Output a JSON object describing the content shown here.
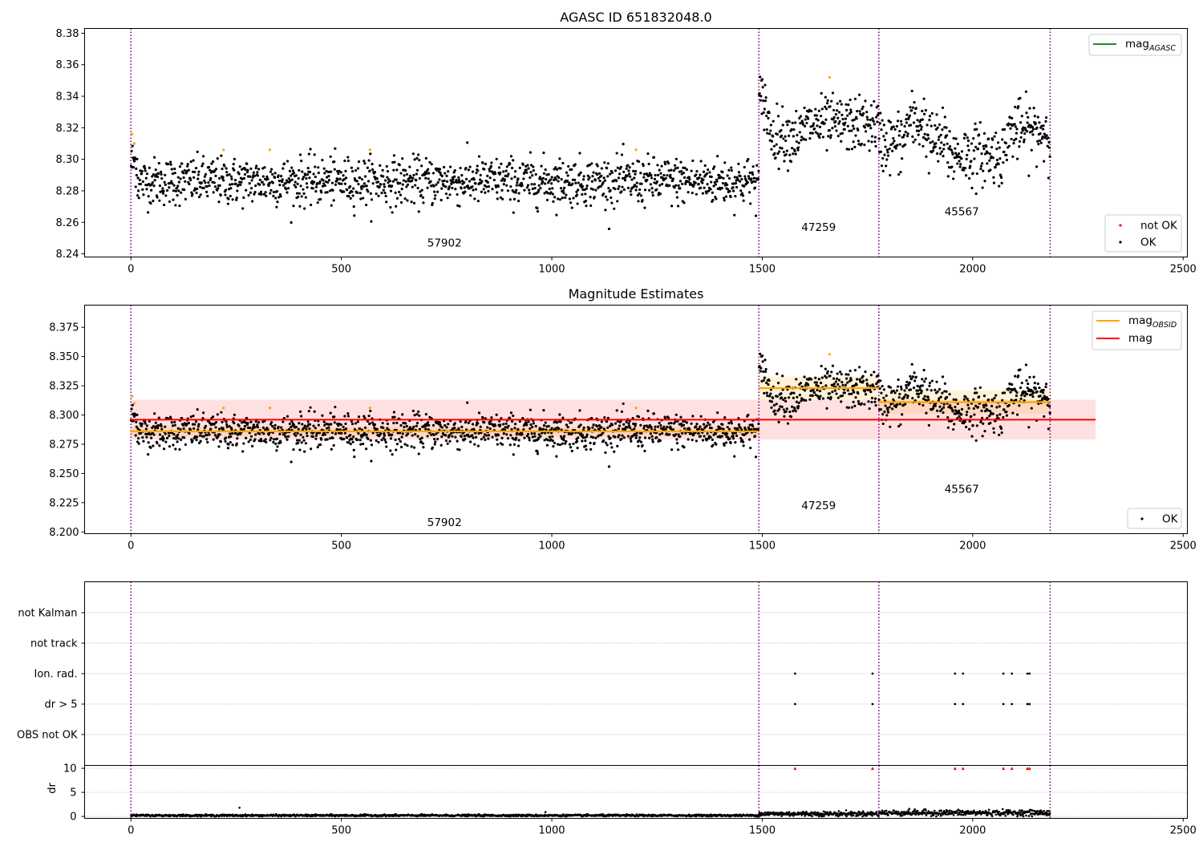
{
  "chart_data": [
    {
      "type": "scatter",
      "title": "AGASC ID 651832048.0",
      "xlim": [
        -110,
        2510
      ],
      "ylim": [
        8.238,
        8.383
      ],
      "xticks": [
        0,
        500,
        1000,
        1500,
        2000,
        2500
      ],
      "yticks": [
        8.24,
        8.26,
        8.28,
        8.3,
        8.32,
        8.34,
        8.36,
        8.38
      ],
      "grid": false,
      "legend_top": {
        "placement": "top-right",
        "entries": [
          {
            "label": "mag",
            "sub": "AGASC",
            "color": "#008000",
            "kind": "line"
          }
        ]
      },
      "legend_bottom": {
        "placement": "bottom-right",
        "entries": [
          {
            "label": "not OK",
            "color": "#ff0000",
            "kind": "dot"
          },
          {
            "label": "OK",
            "color": "#000000",
            "kind": "dot"
          }
        ]
      },
      "obs_boundaries": [
        0,
        1492,
        1777,
        2184
      ],
      "obs_labels": [
        {
          "text": "57902",
          "x": 745,
          "y": 8.2445
        },
        {
          "text": "47259",
          "x": 1634,
          "y": 8.2545
        },
        {
          "text": "45567",
          "x": 1974,
          "y": 8.2645
        }
      ],
      "segments": [
        {
          "x0": 0,
          "x1": 1492,
          "mean": 8.286,
          "sd": 0.0075
        },
        {
          "x0": 1492,
          "x1": 1777,
          "mean": 8.322,
          "sd": 0.0085
        },
        {
          "x0": 1777,
          "x1": 2184,
          "mean": 8.311,
          "sd": 0.0095
        }
      ],
      "outliers": [
        [
          3,
          8.316
        ],
        [
          8,
          8.31
        ],
        [
          220,
          8.306
        ],
        [
          330,
          8.306
        ],
        [
          568,
          8.306
        ],
        [
          1200,
          8.306
        ],
        [
          1660,
          8.352
        ]
      ]
    },
    {
      "type": "scatter",
      "title": "Magnitude Estimates",
      "xlim": [
        -110,
        2510
      ],
      "ylim": [
        8.1985,
        8.394
      ],
      "xticks": [
        0,
        500,
        1000,
        1500,
        2000,
        2500
      ],
      "yticks": [
        8.2,
        8.225,
        8.25,
        8.275,
        8.3,
        8.325,
        8.35,
        8.375
      ],
      "grid": false,
      "legend_top": {
        "placement": "top-right",
        "entries": [
          {
            "label": "mag",
            "sub": "OBSID",
            "color": "#ffa500",
            "kind": "line"
          },
          {
            "label": "mag",
            "sub": "",
            "color": "#ff0000",
            "kind": "line"
          }
        ]
      },
      "legend_bottom": {
        "placement": "bottom-right",
        "entries": [
          {
            "label": "OK",
            "color": "#000000",
            "kind": "dot"
          }
        ]
      },
      "mag": {
        "value": 8.296,
        "band": [
          8.279,
          8.313
        ],
        "x": [
          0,
          2292
        ]
      },
      "mag_obsid": [
        {
          "x0": 0,
          "x1": 1492,
          "value": 8.286,
          "band": [
            8.282,
            8.29
          ]
        },
        {
          "x0": 1492,
          "x1": 1777,
          "value": 8.323,
          "band": [
            8.313,
            8.333
          ]
        },
        {
          "x0": 1777,
          "x1": 2184,
          "value": 8.311,
          "band": [
            8.301,
            8.321
          ]
        }
      ],
      "obs_boundaries": [
        0,
        1492,
        1777,
        2184
      ],
      "obs_labels": [
        {
          "text": "57902",
          "x": 745,
          "y": 8.205
        },
        {
          "text": "47259",
          "x": 1634,
          "y": 8.2195
        },
        {
          "text": "45567",
          "x": 1974,
          "y": 8.2335
        }
      ]
    },
    {
      "type": "scatter",
      "title": "",
      "xlim": [
        -110,
        2510
      ],
      "categories": [
        "OBS not OK",
        "dr > 5",
        "Ion. rad.",
        "not track",
        "not Kalman"
      ],
      "grid": true,
      "obs_boundaries": [
        0,
        1492,
        1777,
        2184
      ],
      "flags": {
        "dr > 5": [
          1578,
          1762,
          1958,
          1977,
          2073,
          2093,
          2130,
          2135
        ],
        "Ion. rad.": [
          1578,
          1762,
          1958,
          1977,
          2073,
          2093,
          2130,
          2135
        ]
      }
    },
    {
      "type": "scatter",
      "title": "",
      "xlim": [
        -110,
        2510
      ],
      "ylim": [
        -0.4,
        10.6
      ],
      "ylabel": "dr",
      "xticks": [
        0,
        500,
        1000,
        1500,
        2000,
        2500
      ],
      "yticks": [
        0,
        5,
        10
      ],
      "grid": true,
      "obs_boundaries": [
        0,
        1492,
        1777,
        2184
      ],
      "clipped": [
        1578,
        1762,
        1958,
        1977,
        2073,
        2093,
        2130,
        2135
      ],
      "segments": [
        {
          "x0": 0,
          "x1": 1492,
          "mean": 0.2,
          "sd": 0.1
        },
        {
          "x0": 1492,
          "x1": 1777,
          "mean": 0.55,
          "sd": 0.25
        },
        {
          "x0": 1777,
          "x1": 2184,
          "mean": 0.75,
          "sd": 0.3
        }
      ],
      "spikes": [
        [
          258,
          1.8
        ],
        [
          985,
          0.9
        ]
      ]
    }
  ]
}
